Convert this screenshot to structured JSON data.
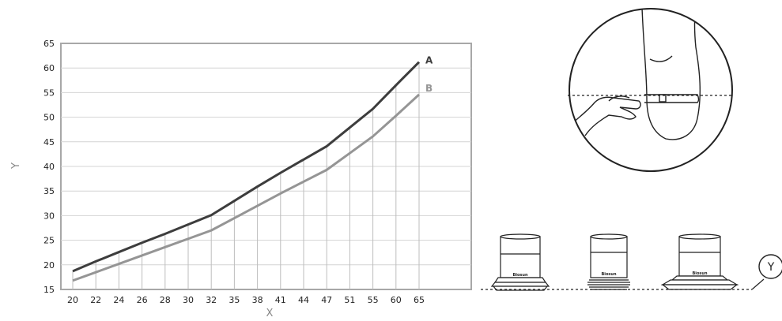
{
  "chart_data": {
    "type": "line",
    "x": [
      "20",
      "22",
      "24",
      "26",
      "28",
      "30",
      "32",
      "35",
      "38",
      "41",
      "44",
      "47",
      "51",
      "55",
      "60",
      "65"
    ],
    "series": [
      {
        "name": "A",
        "color": "#3d3d3d",
        "values": [
          18.7,
          20.7,
          22.6,
          24.5,
          26.3,
          28.2,
          30.1,
          33.0,
          35.9,
          38.7,
          41.4,
          44.1,
          47.9,
          51.7,
          56.5,
          61.2
        ]
      },
      {
        "name": "B",
        "color": "#959595",
        "values": [
          16.8,
          18.5,
          20.2,
          21.9,
          23.6,
          25.3,
          27.0,
          29.5,
          32.0,
          34.5,
          36.9,
          39.3,
          42.7,
          46.1,
          50.3,
          54.6
        ]
      }
    ],
    "xlabel": "X",
    "ylabel": "Y",
    "ylim": [
      15,
      65
    ],
    "yticks": [
      15,
      20,
      25,
      30,
      35,
      40,
      45,
      50,
      55,
      60,
      65
    ],
    "grid": "vertical",
    "legend": "inline-right"
  },
  "illustrations": {
    "measure_callout": "",
    "cap_brand": "Biosun",
    "reference_label": "Y"
  }
}
